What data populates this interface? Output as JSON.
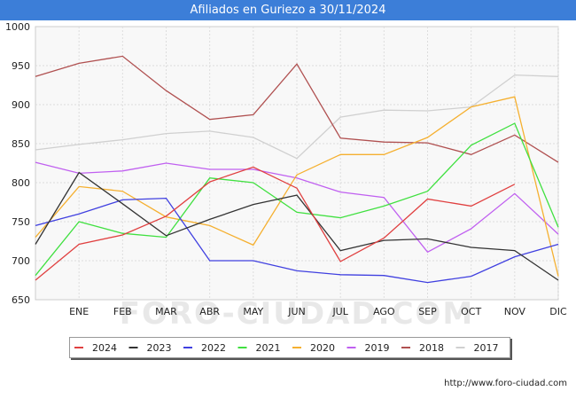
{
  "header": {
    "title": "Afiliados en Guriezo a 30/11/2024"
  },
  "footer": {
    "url": "http://www.foro-ciudad.com"
  },
  "watermark": "FORO-CIUDAD.COM",
  "chart_data": {
    "type": "line",
    "title": "Afiliados en Guriezo a 30/11/2024",
    "x_ticks": [
      "ENE",
      "FEB",
      "MAR",
      "ABR",
      "MAY",
      "JUN",
      "JUL",
      "AGO",
      "SEP",
      "OCT",
      "NOV",
      "DIC"
    ],
    "ylim": [
      650,
      1000
    ],
    "y_ticks": [
      650,
      700,
      750,
      800,
      850,
      900,
      950,
      1000
    ],
    "grid": true,
    "legend_position": "bottom",
    "series": [
      {
        "name": "2024",
        "color": "#e04040",
        "values": [
          675,
          721,
          733,
          757,
          801,
          820,
          793,
          699,
          729,
          779,
          770,
          798
        ]
      },
      {
        "name": "2023",
        "color": "#333333",
        "values": [
          721,
          813,
          773,
          732,
          753,
          772,
          784,
          713,
          726,
          728,
          717,
          713,
          675
        ]
      },
      {
        "name": "2022",
        "color": "#4040e0",
        "values": [
          745,
          760,
          778,
          780,
          700,
          700,
          687,
          682,
          681,
          672,
          680,
          705,
          721
        ]
      },
      {
        "name": "2021",
        "color": "#40e040",
        "values": [
          681,
          750,
          735,
          730,
          806,
          800,
          762,
          755,
          770,
          789,
          848,
          876,
          743
        ]
      },
      {
        "name": "2020",
        "color": "#f5b030",
        "values": [
          730,
          795,
          789,
          756,
          745,
          720,
          810,
          836,
          836,
          858,
          897,
          910,
          680
        ]
      },
      {
        "name": "2019",
        "color": "#c060f0",
        "values": [
          826,
          812,
          815,
          825,
          817,
          817,
          806,
          788,
          781,
          711,
          741,
          786,
          734
        ]
      },
      {
        "name": "2018",
        "color": "#b05050",
        "values": [
          936,
          953,
          962,
          918,
          881,
          887,
          952,
          857,
          852,
          851,
          836,
          861,
          826
        ]
      },
      {
        "name": "2017",
        "color": "#d0d0d0",
        "values": [
          842,
          849,
          855,
          863,
          866,
          858,
          831,
          884,
          893,
          892,
          897,
          938,
          936
        ]
      }
    ]
  }
}
